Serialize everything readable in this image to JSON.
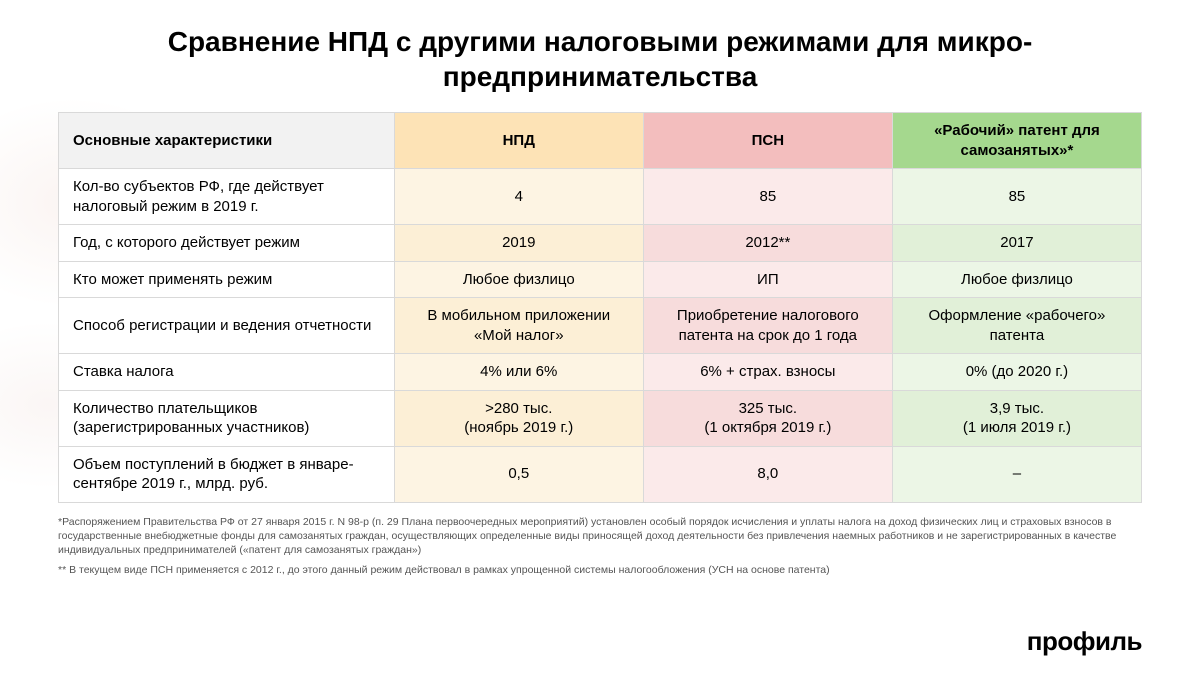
{
  "title": "Сравнение НПД с другими налоговыми режимами для микро-предпринимательства",
  "columns": {
    "main": "Основные характеристики",
    "c1": "НПД",
    "c2": "ПСН",
    "c3": "«Рабочий» патент для самозанятых»*"
  },
  "header_colors": {
    "c1": "#fde3b6",
    "c2": "#f3bebe",
    "c3": "#a5d88e"
  },
  "cell_colors": {
    "c1_even": "#fdf4e3",
    "c1_odd": "#fcefd6",
    "c2_even": "#fbeaea",
    "c2_odd": "#f7dcdc",
    "c3_even": "#ecf6e6",
    "c3_odd": "#e1f0d8"
  },
  "rows": [
    {
      "label": "Кол-во субъектов РФ, где действует налоговый режим в 2019 г.",
      "c1": "4",
      "c2": "85",
      "c3": "85"
    },
    {
      "label": "Год, с которого действует режим",
      "c1": "2019",
      "c2": "2012**",
      "c3": "2017"
    },
    {
      "label": "Кто может применять режим",
      "c1": "Любое физлицо",
      "c2": "ИП",
      "c3": "Любое физлицо"
    },
    {
      "label": "Способ регистрации и ведения отчетности",
      "c1": "В мобильном приложении «Мой налог»",
      "c2": "Приобретение налогового патента на срок до 1 года",
      "c3": "Оформление «рабочего» патента"
    },
    {
      "label": "Ставка налога",
      "c1": "4% или 6%",
      "c2": "6% + страх. взносы",
      "c3": "0% (до 2020 г.)"
    },
    {
      "label": "Количество плательщиков (зарегистрированных участников)",
      "c1": ">280 тыс.\n(ноябрь 2019 г.)",
      "c2": "325 тыс.\n(1 октября 2019 г.)",
      "c3": "3,9 тыс.\n(1 июля 2019 г.)"
    },
    {
      "label": "Объем поступлений в бюджет в январе-сентябре 2019 г., млрд. руб.",
      "c1": "0,5",
      "c2": "8,0",
      "c3": "–"
    }
  ],
  "footnotes": {
    "f1": "*Распоряжением Правительства РФ от 27 января 2015  г. N  98-р (п. 29 Плана первоочередных мероприятий) установлен особый порядок исчисления и уплаты налога на доход физических лиц и страховых взносов в государственные внебюджетные фонды для самозанятых граждан, осуществляющих определенные виды приносящей доход деятельности без привлечения наемных работников и не зарегистрированных в качестве индивидуальных предпринимателей («патент для самозанятых граждан»)",
    "f2": "** В текущем виде ПСН применяется с 2012 г., до этого данный режим действовал в рамках упрощенной системы налогообложения (УСН на основе патента)"
  },
  "logo": "профиль"
}
